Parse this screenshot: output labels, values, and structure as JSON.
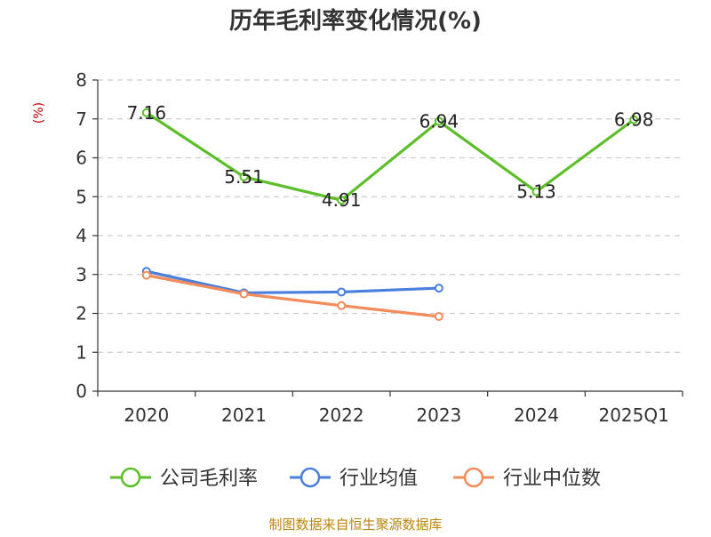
{
  "chart_data": {
    "type": "line",
    "title": "历年毛利率变化情况(%)",
    "ylabel": "(%)",
    "xlabel": "",
    "categories": [
      "2020",
      "2021",
      "2022",
      "2023",
      "2024",
      "2025Q1"
    ],
    "ylim": [
      0,
      8
    ],
    "yticks": [
      "0",
      "1",
      "2",
      "3",
      "4",
      "5",
      "6",
      "7",
      "8"
    ],
    "grid": true,
    "legend_position": "bottom",
    "series": [
      {
        "name": "公司毛利率",
        "color": "#5cbf2a",
        "values": [
          7.16,
          5.51,
          4.91,
          6.94,
          5.13,
          6.98
        ],
        "labels": [
          "7.16",
          "5.51",
          "4.91",
          "6.94",
          "5.13",
          "6.98"
        ]
      },
      {
        "name": "行业均值",
        "color": "#4a7fdc",
        "values": [
          3.08,
          2.53,
          2.55,
          2.65,
          null,
          null
        ]
      },
      {
        "name": "行业中位数",
        "color": "#f28c5c",
        "values": [
          2.98,
          2.5,
          2.2,
          1.92,
          null,
          null
        ]
      }
    ]
  },
  "source": "制图数据来自恒生聚源数据库"
}
